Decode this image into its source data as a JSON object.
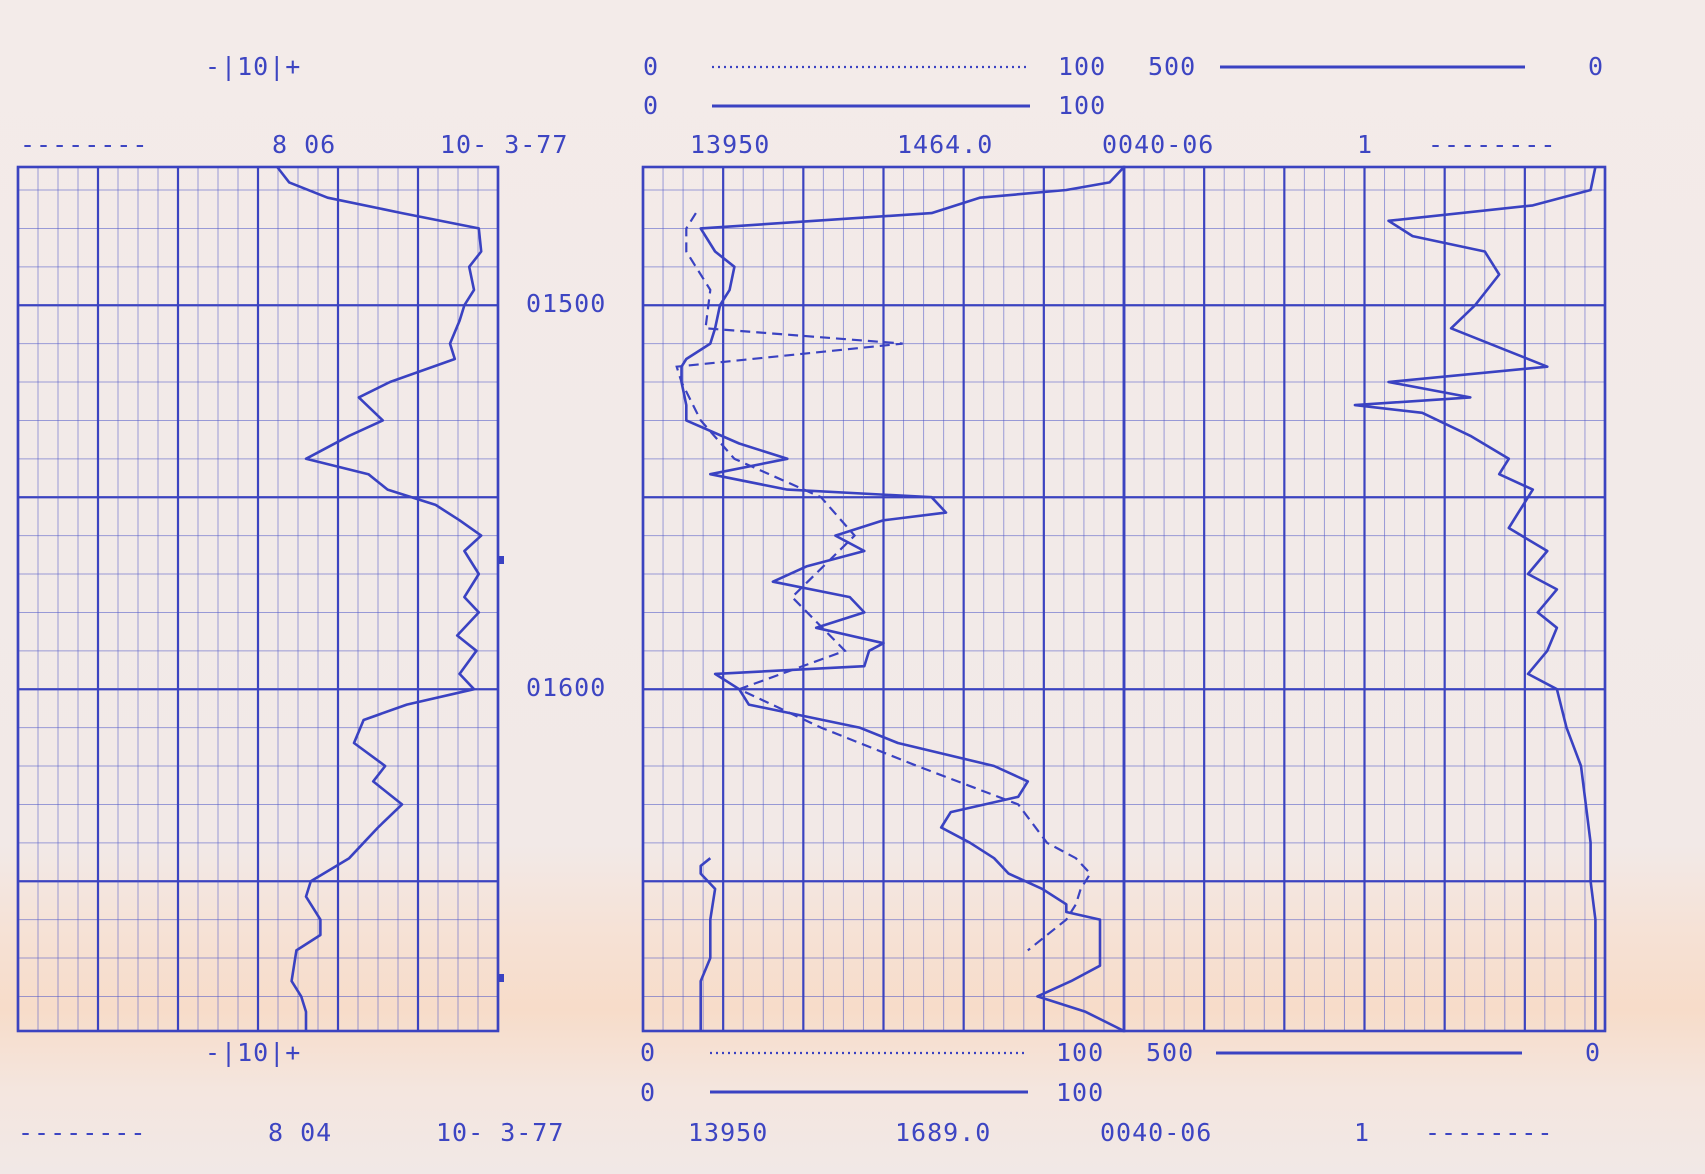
{
  "colors": {
    "ink": "#3a42c2",
    "paper": "#f3ebe9"
  },
  "top_header": {
    "track1_scale": "-|10|+",
    "scale_a_left": "0",
    "scale_a_right": "100",
    "scale_b_left": "0",
    "scale_b_right": "100",
    "scale_c_left": "500",
    "scale_c_right": "0",
    "row3_dashes_left": "--------",
    "row3_code": "8 06",
    "row3_date": "10- 3-77",
    "row3_id": "13950",
    "row3_depth": "1464.0",
    "row3_file": "0040-06",
    "row3_run": "1",
    "row3_dashes_right": "--------"
  },
  "bottom_header": {
    "track1_scale": "-|10|+",
    "scale_a_left": "0",
    "scale_a_right": "100",
    "scale_b_left": "0",
    "scale_b_right": "100",
    "scale_c_left": "500",
    "scale_c_right": "0",
    "row3_dashes_left": "--------",
    "row3_code": "8 04",
    "row3_date": "10- 3-77",
    "row3_id": "13950",
    "row3_depth": "1689.0",
    "row3_file": "0040-06",
    "row3_run": "1",
    "row3_dashes_right": "--------"
  },
  "chart_data": {
    "type": "line",
    "depth_labels": [
      "01500",
      "01600"
    ],
    "depth_label_values": [
      1500,
      1600
    ],
    "depth_range": [
      1464,
      1689
    ],
    "series": [
      {
        "track": "track1",
        "depth": [
          1464,
          1468,
          1472,
          1476,
          1480,
          1486,
          1490,
          1496,
          1500,
          1504,
          1510,
          1514,
          1520,
          1524,
          1530,
          1534,
          1540,
          1544,
          1548,
          1552,
          1556,
          1560,
          1564,
          1570,
          1576,
          1580,
          1586,
          1590,
          1596,
          1600,
          1604,
          1608,
          1614,
          1620,
          1624,
          1630,
          1636,
          1640,
          1644,
          1650,
          1654,
          1660,
          1664,
          1668,
          1672,
          1676,
          1680,
          1684,
          1689
        ],
        "value": [
          0.8,
          1.3,
          2.9,
          6.0,
          9.2,
          9.3,
          8.8,
          9.0,
          8.6,
          8.4,
          8.0,
          8.2,
          5.5,
          4.2,
          5.2,
          3.8,
          2.0,
          4.6,
          5.4,
          7.4,
          8.4,
          9.3,
          8.6,
          9.2,
          8.6,
          9.2,
          8.3,
          9.1,
          8.4,
          9.0,
          6.2,
          4.4,
          4.0,
          5.3,
          4.8,
          6.0,
          5.0,
          4.4,
          3.8,
          2.2,
          2.0,
          2.6,
          2.6,
          1.6,
          1.5,
          1.4,
          1.8,
          2.0,
          2.0
        ]
      },
      {
        "track": "track2",
        "depth": [
          1464,
          1468,
          1470,
          1472,
          1476,
          1480,
          1486,
          1490,
          1496,
          1500,
          1506,
          1510,
          1514,
          1516,
          1520,
          1526,
          1530,
          1536,
          1540,
          1544,
          1548,
          1550,
          1554,
          1556,
          1560,
          1564,
          1568,
          1572,
          1576,
          1580,
          1584,
          1588,
          1590,
          1594,
          1596,
          1600,
          1604,
          1610,
          1614,
          1620,
          1624,
          1628,
          1632,
          1636,
          1640,
          1644,
          1648,
          1652,
          1656,
          1658,
          1660,
          1664,
          1666,
          1668,
          1672,
          1676,
          1680,
          1684,
          1689
        ],
        "value": [
          100,
          97,
          88,
          70,
          60,
          12,
          15,
          19,
          18,
          16,
          15,
          14,
          9,
          8,
          8,
          9,
          9,
          20,
          30,
          14,
          30,
          60,
          63,
          50,
          40,
          46,
          34,
          27,
          43,
          46,
          36,
          50,
          47,
          46,
          15,
          20,
          22,
          45,
          53,
          73,
          80,
          78,
          64,
          62,
          68,
          73,
          76,
          83,
          88,
          88,
          95,
          95,
          95,
          95,
          95,
          89,
          82,
          92,
          100
        ]
      },
      {
        "track": "track2",
        "depth": [
          1476,
          1480,
          1486,
          1496,
          1506,
          1510,
          1516,
          1520,
          1530,
          1540,
          1550,
          1560,
          1576,
          1590,
          1600,
          1610,
          1620,
          1630,
          1640,
          1644,
          1648,
          1652,
          1656,
          1660,
          1664,
          1668
        ],
        "value": [
          11,
          9,
          9,
          14,
          13,
          54,
          7,
          8,
          12,
          19,
          37,
          44,
          31,
          42,
          20,
          37,
          57,
          78,
          84,
          90,
          93,
          91,
          90,
          88,
          84,
          80
        ]
      }
    ],
    "scale_top": [
      "0",
      "100",
      "0",
      "100",
      "500",
      "0"
    ]
  }
}
